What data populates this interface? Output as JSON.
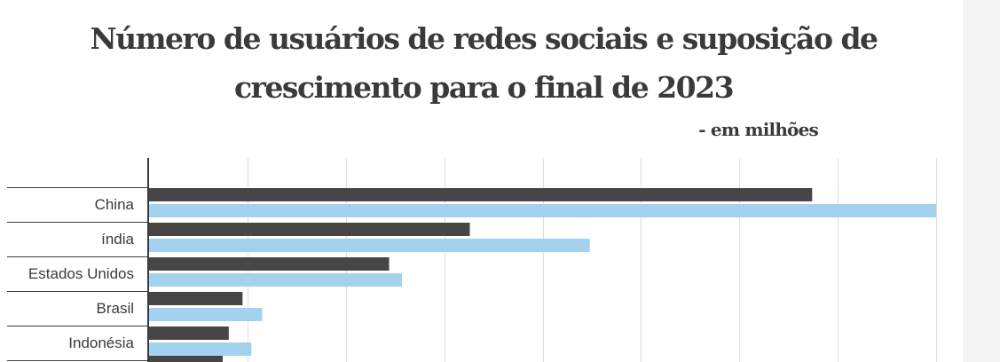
{
  "title_line1": "Número de usuários de redes sociais e suposição de",
  "title_line2": "crescimento para o final de 2023",
  "subtitle": "- em milhões",
  "colors": {
    "series_current": "#464646",
    "series_projection": "#a3d2ee",
    "gridline": "#dddddd",
    "axis": "#3a3a3a",
    "sidebar": "#f3f3f3"
  },
  "chart_data": {
    "type": "bar",
    "orientation": "horizontal",
    "title": "Número de usuários de redes sociais e suposição de crescimento para o final de 2023",
    "subtitle": "- em milhões",
    "categories": [
      "China",
      "índia",
      "Estados Unidos",
      "Brasil",
      "Indonésia"
    ],
    "series": [
      {
        "values": [
          674,
          326,
          244,
          95,
          81
        ]
      },
      {
        "values": [
          800,
          448,
          257,
          115,
          104
        ]
      }
    ],
    "xlim": [
      0,
      800
    ],
    "grid": true,
    "tick_step": 100,
    "tick_labels_visible": false
  }
}
